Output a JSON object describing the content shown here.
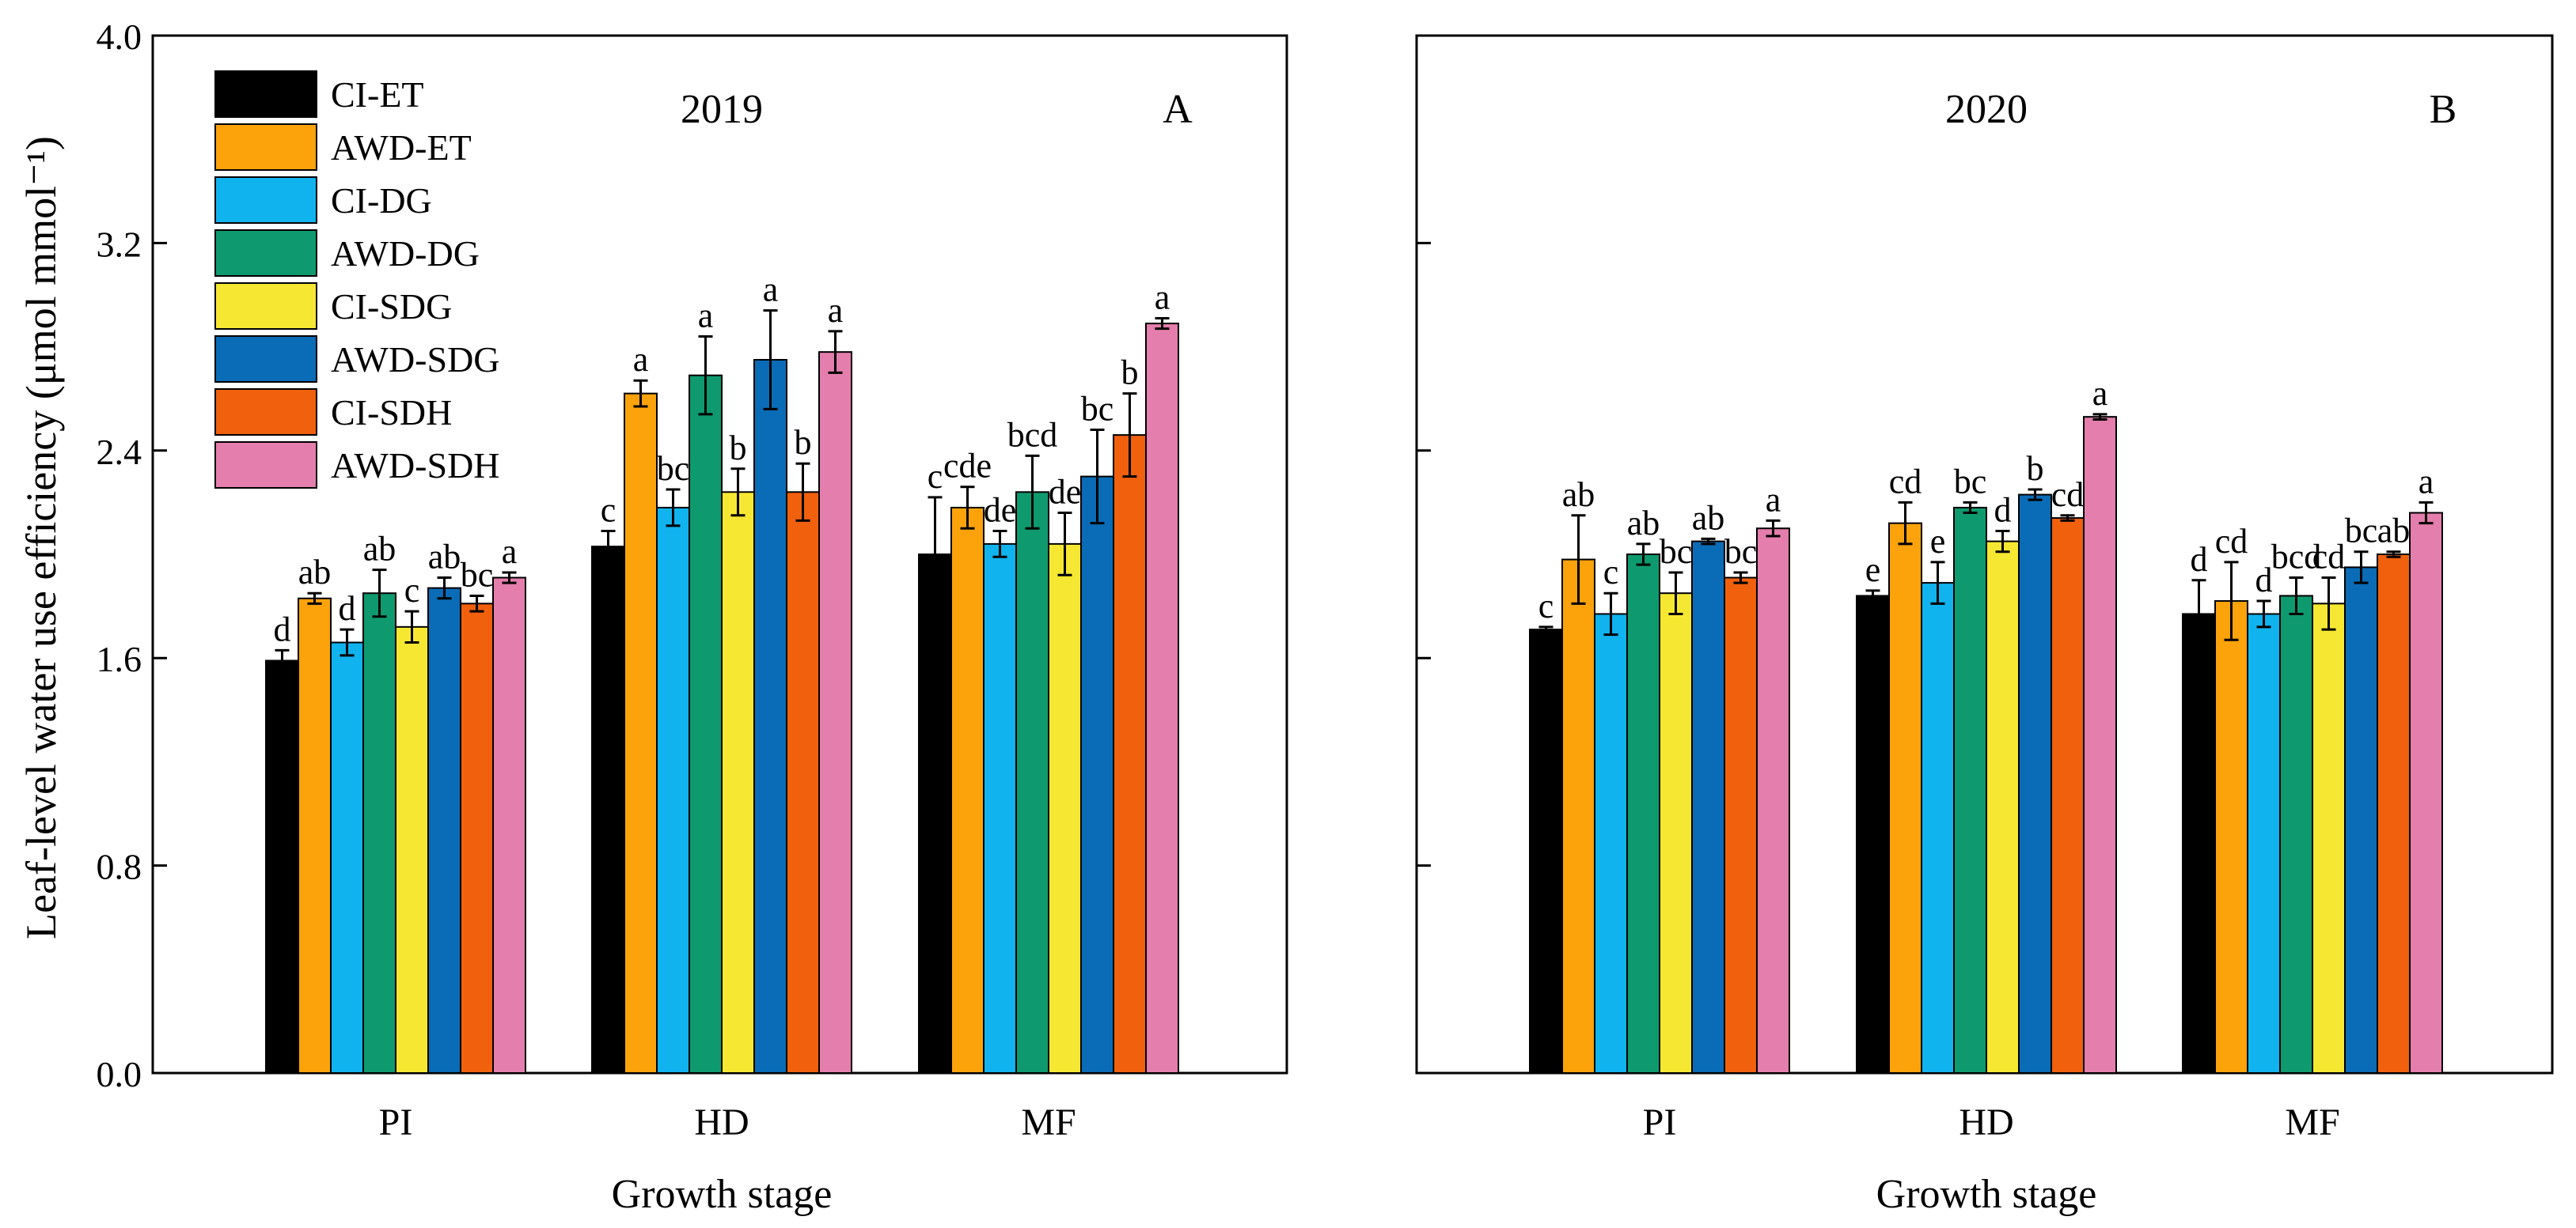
{
  "chart_data": {
    "type": "bar",
    "ylabel": "Leaf-level water use efficiency (μmol mmol⁻¹)",
    "ylim": [
      0,
      4
    ],
    "yticks": [
      "0.0",
      "0.8",
      "1.6",
      "2.4",
      "3.2",
      "4.0"
    ],
    "ytick_values": [
      0,
      0.8,
      1.6,
      2.4,
      3.2,
      4.0
    ],
    "legend_position": "top-left",
    "series_names": [
      "CI-ET",
      "AWD-ET",
      "CI-DG",
      "AWD-DG",
      "CI-SDG",
      "AWD-SDG",
      "CI-SDH",
      "AWD-SDH"
    ],
    "series_colors": [
      "#000000",
      "#FCA20A",
      "#10B3EE",
      "#0E9A6E",
      "#F6E832",
      "#0A6CB6",
      "#F0600D",
      "#E47EAC"
    ],
    "categories": [
      "PI",
      "HD",
      "MF"
    ],
    "panels": [
      {
        "title": "2019",
        "label": "A",
        "xlabel": "Growth stage",
        "values": [
          [
            1.59,
            2.03,
            2.0
          ],
          [
            1.83,
            2.62,
            2.18
          ],
          [
            1.66,
            2.18,
            2.04
          ],
          [
            1.85,
            2.69,
            2.24
          ],
          [
            1.72,
            2.24,
            2.04
          ],
          [
            1.87,
            2.75,
            2.3
          ],
          [
            1.81,
            2.24,
            2.46
          ],
          [
            1.91,
            2.78,
            2.89
          ]
        ],
        "errors": [
          [
            0.04,
            0.06,
            0.22
          ],
          [
            0.02,
            0.05,
            0.08
          ],
          [
            0.05,
            0.07,
            0.05
          ],
          [
            0.09,
            0.15,
            0.14
          ],
          [
            0.06,
            0.09,
            0.12
          ],
          [
            0.04,
            0.19,
            0.18
          ],
          [
            0.03,
            0.11,
            0.16
          ],
          [
            0.02,
            0.08,
            0.02
          ]
        ],
        "letters": [
          [
            "d",
            "c",
            "c"
          ],
          [
            "ab",
            "a",
            "cde"
          ],
          [
            "d",
            "bc",
            "de"
          ],
          [
            "ab",
            "a",
            "bcd"
          ],
          [
            "c",
            "b",
            "de"
          ],
          [
            "ab",
            "a",
            "bc"
          ],
          [
            "bc",
            "b",
            "b"
          ],
          [
            "a",
            "a",
            "a"
          ]
        ]
      },
      {
        "title": "2020",
        "label": "B",
        "xlabel": "Growth stage",
        "values": [
          [
            1.71,
            1.84,
            1.77
          ],
          [
            1.98,
            2.12,
            1.82
          ],
          [
            1.77,
            1.89,
            1.77
          ],
          [
            2.0,
            2.18,
            1.84
          ],
          [
            1.85,
            2.05,
            1.81
          ],
          [
            2.05,
            2.23,
            1.95
          ],
          [
            1.91,
            2.14,
            2.0
          ],
          [
            2.1,
            2.53,
            2.16
          ]
        ],
        "errors": [
          [
            0.01,
            0.02,
            0.13
          ],
          [
            0.17,
            0.08,
            0.15
          ],
          [
            0.08,
            0.08,
            0.05
          ],
          [
            0.04,
            0.02,
            0.07
          ],
          [
            0.08,
            0.04,
            0.1
          ],
          [
            0.01,
            0.02,
            0.06
          ],
          [
            0.02,
            0.01,
            0.01
          ],
          [
            0.03,
            0.01,
            0.04
          ]
        ],
        "letters": [
          [
            "c",
            "e",
            "d"
          ],
          [
            "ab",
            "cd",
            "cd"
          ],
          [
            "c",
            "e",
            "d"
          ],
          [
            "ab",
            "bc",
            "bcd"
          ],
          [
            "bc",
            "d",
            "cd"
          ],
          [
            "ab",
            "b",
            "bc"
          ],
          [
            "bc",
            "cd",
            "ab"
          ],
          [
            "a",
            "a",
            "a"
          ]
        ]
      }
    ]
  }
}
